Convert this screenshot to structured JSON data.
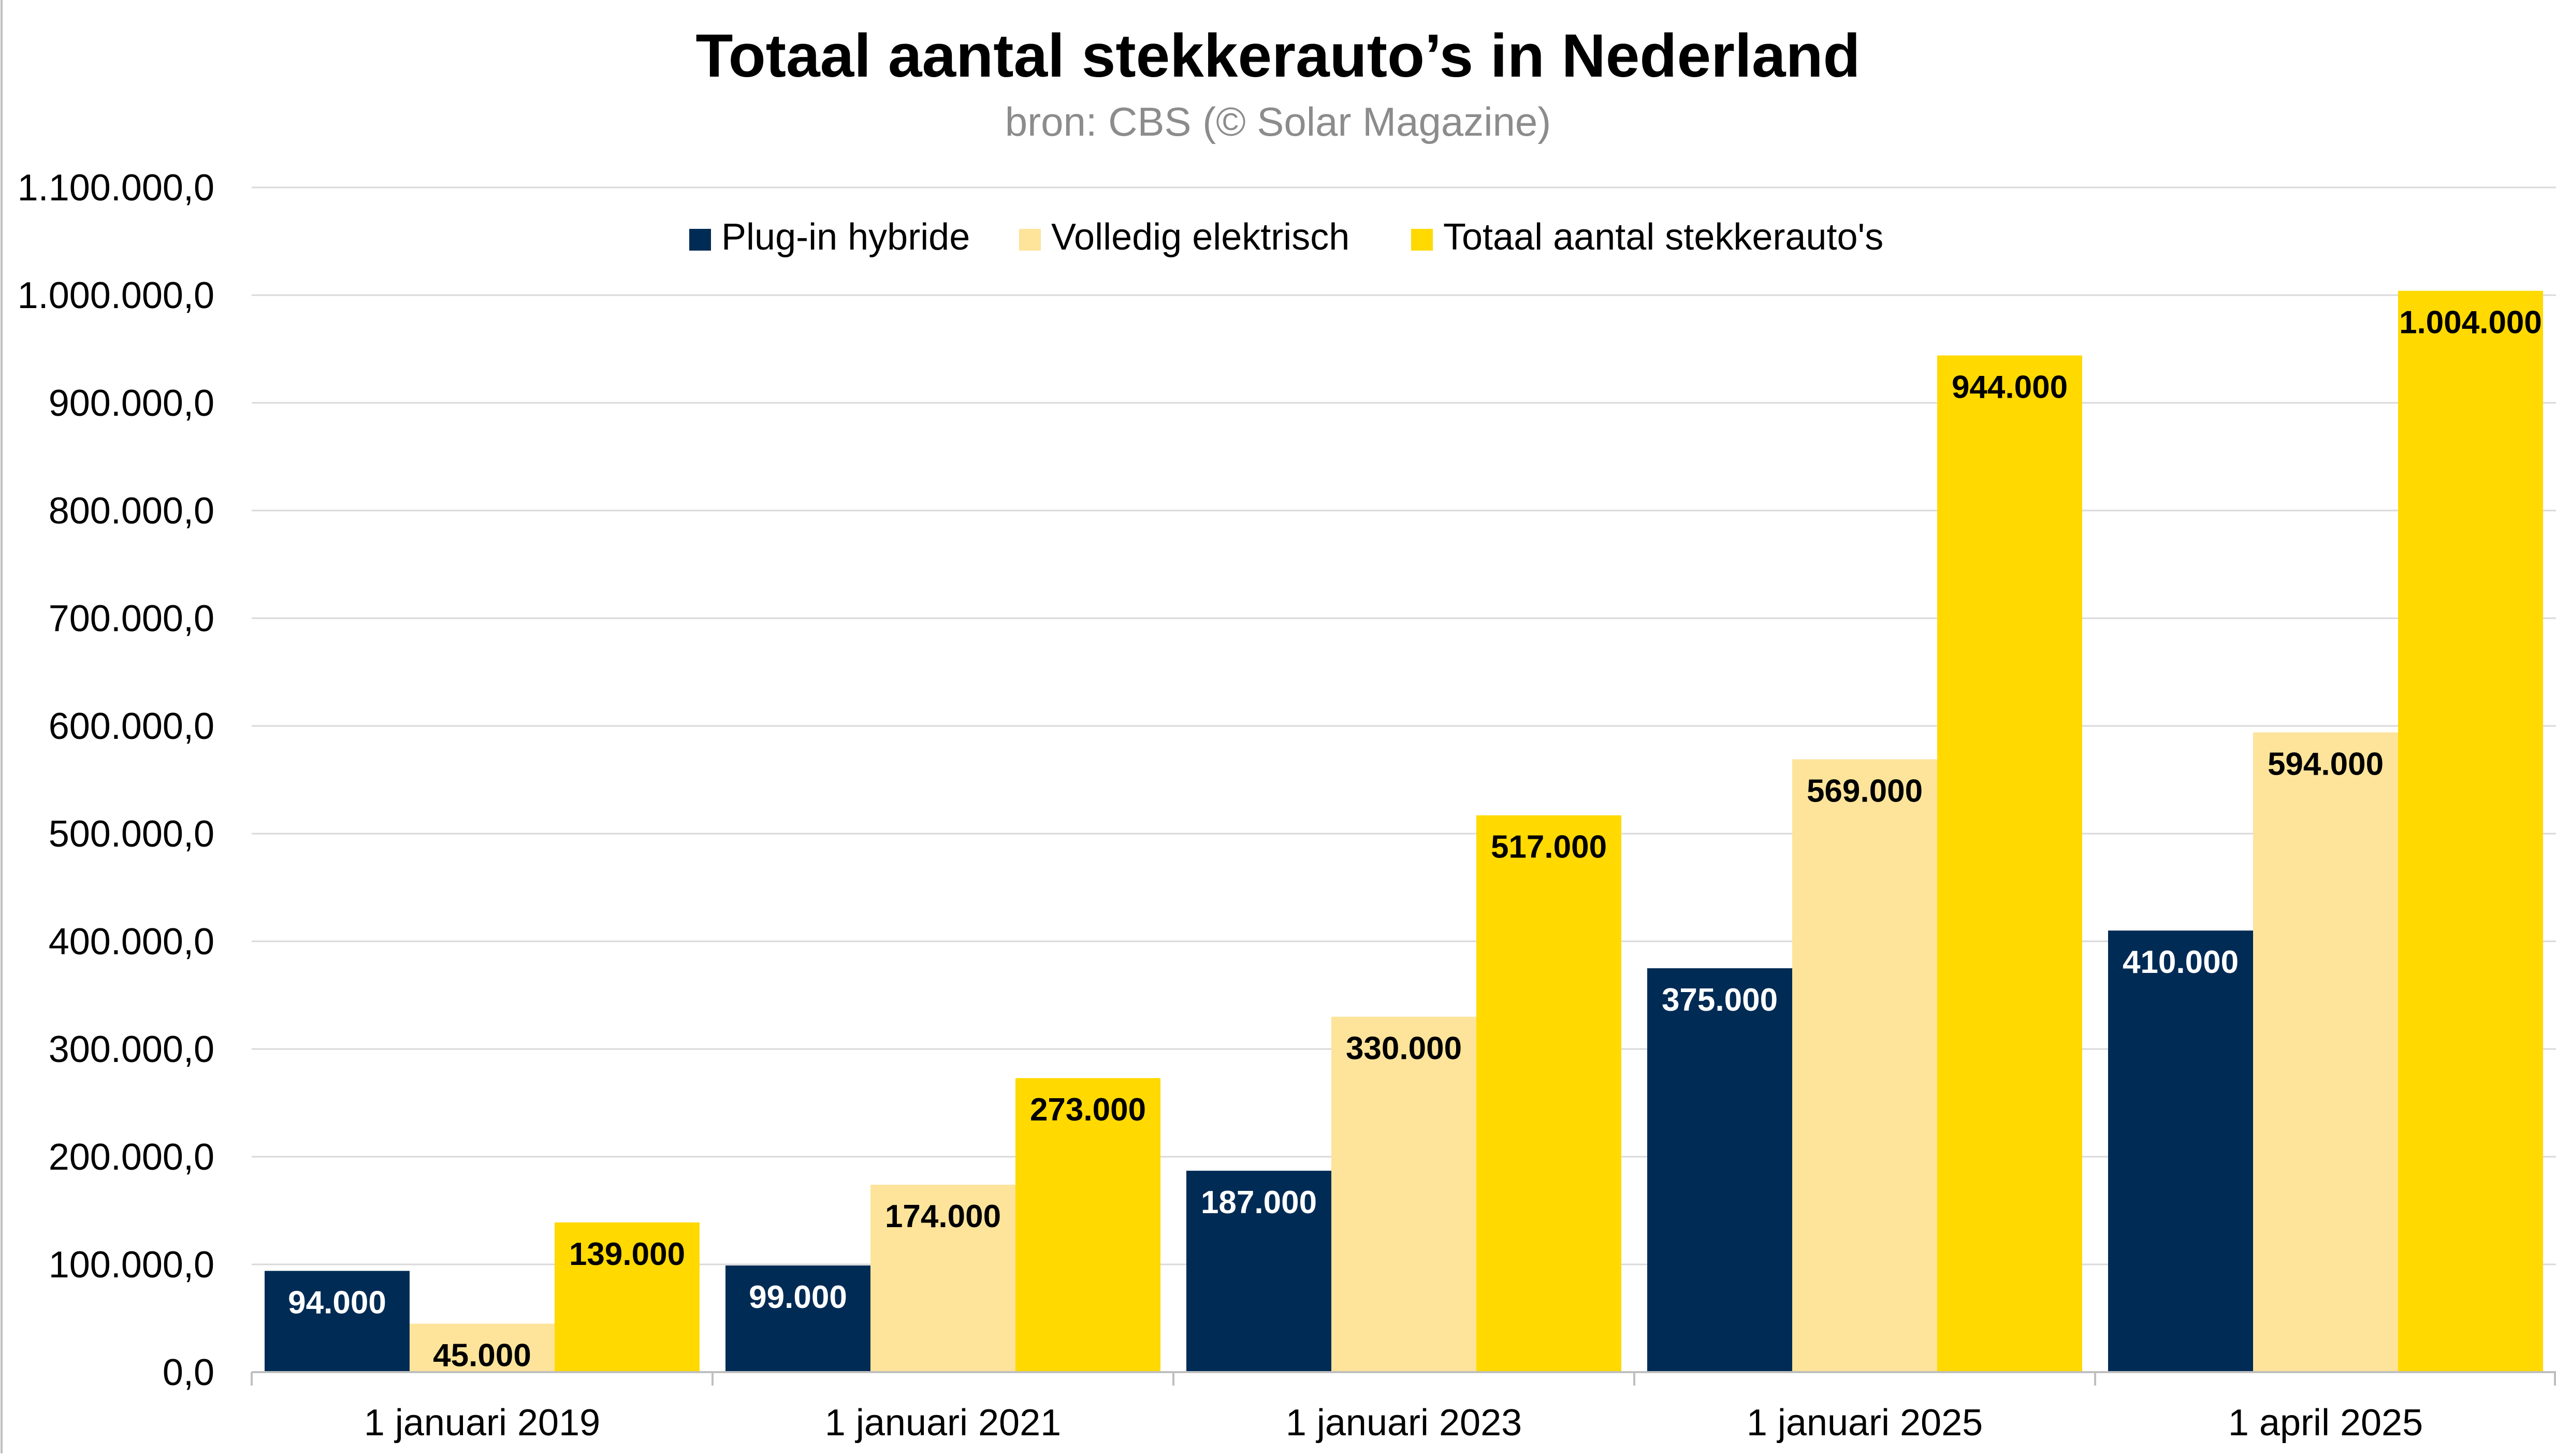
{
  "chart_data": {
    "type": "bar",
    "title": "Totaal aantal stekkerauto’s in Nederland",
    "subtitle": "bron: CBS (© Solar Magazine)",
    "categories": [
      "1 januari 2019",
      "1 januari 2021",
      "1 januari 2023",
      "1 januari 2025",
      "1 april 2025"
    ],
    "series": [
      {
        "name": "Plug-in hybride",
        "color": "#002b55",
        "label_color": "#ffffff",
        "values": [
          94000,
          99000,
          187000,
          375000,
          410000
        ],
        "labels": [
          "94.000",
          "99.000",
          "187.000",
          "375.000",
          "410.000"
        ]
      },
      {
        "name": "Volledig elektrisch",
        "color": "#fde49a",
        "label_color": "#000000",
        "values": [
          45000,
          174000,
          330000,
          569000,
          594000
        ],
        "labels": [
          "45.000",
          "174.000",
          "330.000",
          "569.000",
          "594.000"
        ]
      },
      {
        "name": "Totaal aantal stekkerauto's",
        "color": "#ffd900",
        "label_color": "#000000",
        "values": [
          139000,
          273000,
          517000,
          944000,
          1004000
        ],
        "labels": [
          "139.000",
          "273.000",
          "517.000",
          "944.000",
          "1.004.000"
        ]
      }
    ],
    "ylim": [
      0,
      1100000
    ],
    "yticks": [
      0,
      100000,
      200000,
      300000,
      400000,
      500000,
      600000,
      700000,
      800000,
      900000,
      1000000,
      1100000
    ],
    "ytick_labels": [
      "0,0",
      "100.000,0",
      "200.000,0",
      "300.000,0",
      "400.000,0",
      "500.000,0",
      "600.000,0",
      "700.000,0",
      "800.000,0",
      "900.000,0",
      "1.000.000,0",
      "1.100.000,0"
    ],
    "xlabel": "",
    "ylabel": "",
    "grid": true,
    "legend_position": "top-center",
    "gridline_color": "#d9d9d9",
    "axis_color": "#bfbfbf"
  }
}
